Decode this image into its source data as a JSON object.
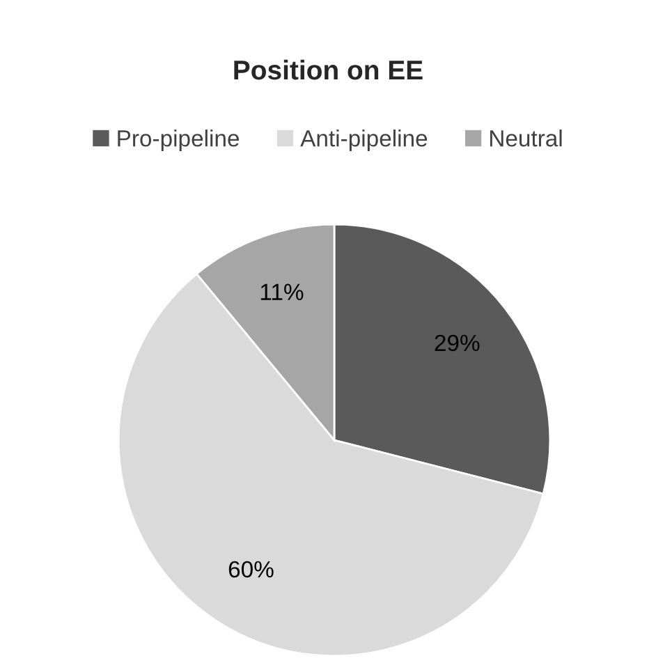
{
  "chart_data": {
    "type": "pie",
    "title": "Position on EE",
    "categories": [
      "Pro-pipeline",
      "Anti-pipeline",
      "Neutral"
    ],
    "values": [
      29,
      60,
      11
    ],
    "colors": [
      "#5a5a5a",
      "#dadada",
      "#a6a6a6"
    ],
    "value_labels": [
      "29%",
      "60%",
      "11%"
    ],
    "legend": "top"
  }
}
